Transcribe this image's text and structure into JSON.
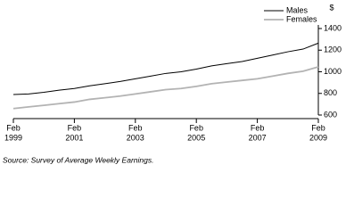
{
  "chart_data": {
    "type": "line",
    "x": [
      "1999-02",
      "1999-08",
      "2000-02",
      "2000-08",
      "2001-02",
      "2001-08",
      "2002-02",
      "2002-08",
      "2003-02",
      "2003-08",
      "2004-02",
      "2004-08",
      "2005-02",
      "2005-08",
      "2006-02",
      "2006-08",
      "2007-02",
      "2007-08",
      "2008-02",
      "2008-08",
      "2009-02"
    ],
    "series": [
      {
        "name": "Males",
        "color": "#000000",
        "values": [
          790,
          795,
          810,
          830,
          845,
          870,
          890,
          910,
          935,
          960,
          985,
          1000,
          1025,
          1055,
          1075,
          1095,
          1125,
          1155,
          1185,
          1210,
          1265
        ]
      },
      {
        "name": "Females",
        "color": "#b3b3b3",
        "values": [
          660,
          675,
          690,
          705,
          720,
          745,
          760,
          775,
          795,
          815,
          835,
          845,
          865,
          890,
          905,
          920,
          935,
          960,
          985,
          1005,
          1045
        ]
      }
    ],
    "xlim": [
      "1999-02",
      "2009-02"
    ],
    "xticks": [
      {
        "value": "1999-02",
        "label": [
          "Feb",
          "1999"
        ]
      },
      {
        "value": "2001-02",
        "label": [
          "Feb",
          "2001"
        ]
      },
      {
        "value": "2003-02",
        "label": [
          "Feb",
          "2003"
        ]
      },
      {
        "value": "2005-02",
        "label": [
          "Feb",
          "2005"
        ]
      },
      {
        "value": "2007-02",
        "label": [
          "Feb",
          "2007"
        ]
      },
      {
        "value": "2009-02",
        "label": [
          "Feb",
          "2009"
        ]
      }
    ],
    "ylabel": "$",
    "ylim": [
      600,
      1400
    ],
    "yticks": [
      600,
      800,
      1000,
      1200,
      1400
    ],
    "legend": "top-right",
    "source": "Source: Survey of Average Weekly Earnings."
  }
}
